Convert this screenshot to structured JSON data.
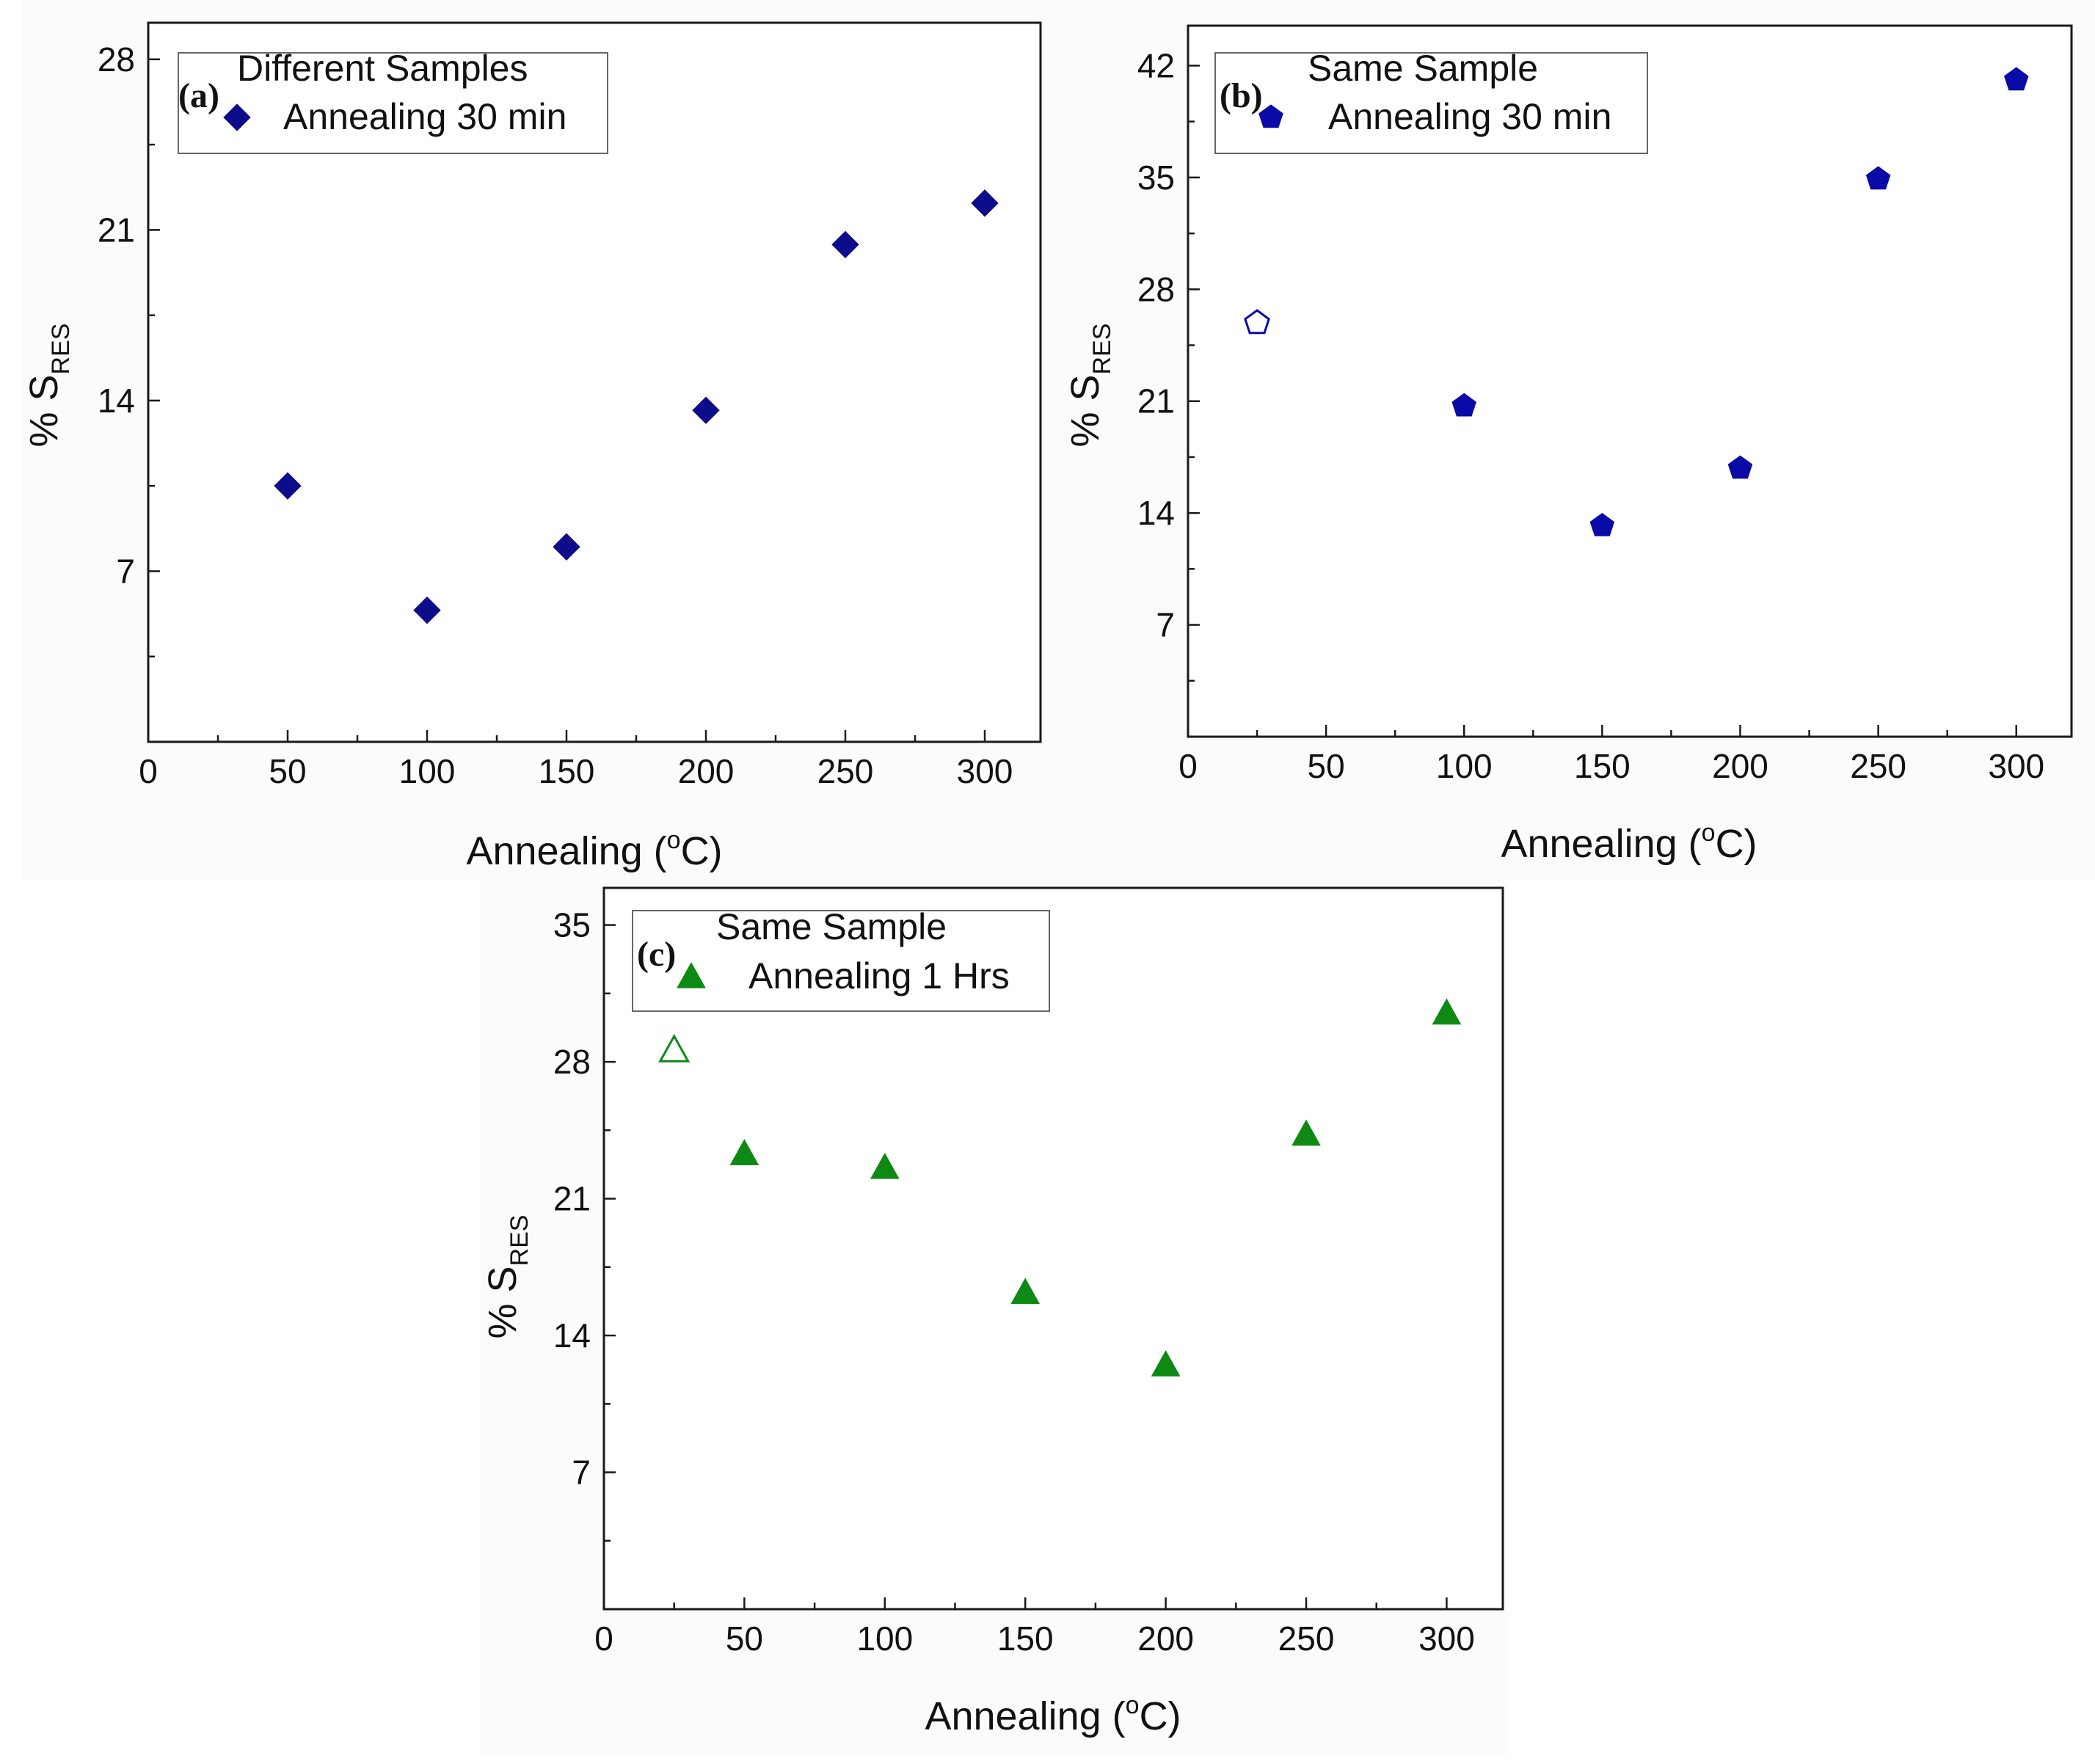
{
  "figure": {
    "background": "#fefefe",
    "panel_background": "#fbfbfb",
    "axis_color": "#1a1a1a"
  },
  "chart_data": [
    {
      "id": "a",
      "type": "scatter",
      "panel_label": "(a)",
      "legend_title": "Different Samples",
      "xlabel_main": "Annealing (",
      "xlabel_sup": "o",
      "xlabel_end": "C)",
      "ylabel_main": "% S",
      "ylabel_sub": "RES",
      "xlim": [
        0,
        320
      ],
      "ylim": [
        0,
        29.5
      ],
      "xticks": [
        0,
        50,
        100,
        150,
        200,
        250,
        300
      ],
      "yticks": [
        7,
        14,
        21,
        28
      ],
      "series": [
        {
          "name": "Annealing 30 min",
          "marker": "diamond",
          "color": "#0d0d8c",
          "points": [
            {
              "x": 50,
              "y": 10.5
            },
            {
              "x": 100,
              "y": 5.4
            },
            {
              "x": 150,
              "y": 8.0
            },
            {
              "x": 200,
              "y": 13.6
            },
            {
              "x": 250,
              "y": 20.4
            },
            {
              "x": 300,
              "y": 22.1
            }
          ]
        }
      ]
    },
    {
      "id": "b",
      "type": "scatter",
      "panel_label": "(b)",
      "legend_title": "Same Sample",
      "xlabel_main": "Annealing (",
      "xlabel_sup": "o",
      "xlabel_end": "C)",
      "ylabel_main": "% S",
      "ylabel_sub": "RES",
      "xlim": [
        0,
        320
      ],
      "ylim": [
        0,
        44.5
      ],
      "xticks": [
        0,
        50,
        100,
        150,
        200,
        250,
        300
      ],
      "yticks": [
        7,
        14,
        21,
        28,
        35,
        42
      ],
      "series": [
        {
          "name": "Annealing 30 min",
          "marker": "pentagon",
          "color": "#0a0aa6",
          "points": [
            {
              "x": 25,
              "y": 25.9,
              "hollow": true
            },
            {
              "x": 100,
              "y": 20.7
            },
            {
              "x": 150,
              "y": 13.2
            },
            {
              "x": 200,
              "y": 16.8
            },
            {
              "x": 250,
              "y": 34.9
            },
            {
              "x": 300,
              "y": 41.1
            }
          ]
        }
      ]
    },
    {
      "id": "c",
      "type": "scatter",
      "panel_label": "(c)",
      "legend_title": "Same Sample",
      "xlabel_main": "Annealing (",
      "xlabel_sup": "o",
      "xlabel_end": "C)",
      "ylabel_main": "% S",
      "ylabel_sub": "RES",
      "xlim": [
        0,
        320
      ],
      "ylim": [
        0,
        36.9
      ],
      "xticks": [
        0,
        50,
        100,
        150,
        200,
        250,
        300
      ],
      "yticks": [
        7,
        14,
        21,
        28,
        35
      ],
      "series": [
        {
          "name": "Annealing 1 Hrs",
          "marker": "triangle",
          "color": "#0e8a14",
          "points": [
            {
              "x": 25,
              "y": 28.6,
              "hollow": true
            },
            {
              "x": 50,
              "y": 23.3
            },
            {
              "x": 100,
              "y": 22.6
            },
            {
              "x": 150,
              "y": 16.2
            },
            {
              "x": 200,
              "y": 12.5
            },
            {
              "x": 250,
              "y": 24.3
            },
            {
              "x": 300,
              "y": 30.5
            }
          ]
        }
      ]
    }
  ]
}
